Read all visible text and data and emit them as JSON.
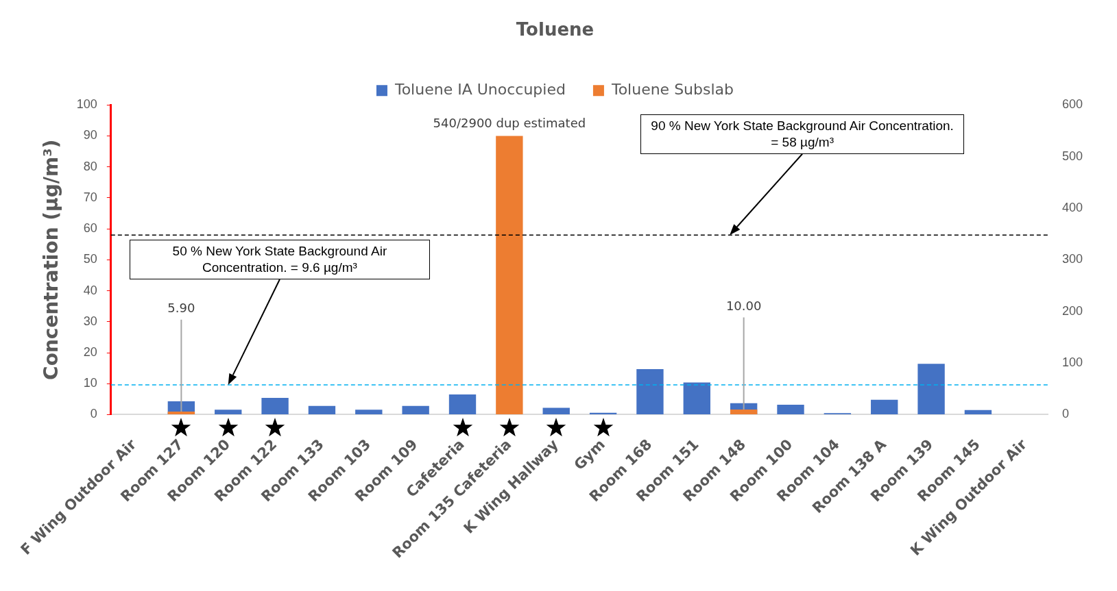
{
  "chart_data": {
    "type": "bar",
    "title": "Toluene",
    "ylabel": "Concentration (µg/m³)",
    "categories": [
      "F Wing Outdoor Air",
      "Room 127",
      "Room 120",
      "Room 122",
      "Room 133",
      "Room 103",
      "Room 109",
      "Cafeteria",
      "Room 135 Cafeteria",
      "K Wing Hallway",
      "Gym",
      "Room 168",
      "Room 151",
      "Room 148",
      "Room 100",
      "Room 104",
      "Room 138 A",
      "Room 139",
      "Room 145",
      "K Wing Outdoor Air"
    ],
    "series": [
      {
        "name": "Toluene IA Unoccupied",
        "color": "#4472c4",
        "values": [
          null,
          4.3,
          1.6,
          5.4,
          2.8,
          1.6,
          2.8,
          6.5,
          null,
          2.2,
          0.6,
          14.7,
          10.4,
          3.7,
          3.2,
          0.5,
          4.8,
          16.4,
          1.5,
          null
        ]
      },
      {
        "name": "Toluene Subslab",
        "color": "#ed7d31",
        "axis": "y2",
        "values": [
          null,
          5.9,
          null,
          null,
          null,
          null,
          null,
          null,
          540,
          null,
          null,
          null,
          null,
          10,
          null,
          null,
          null,
          null,
          null,
          null
        ],
        "value_labels": [
          null,
          "5.90",
          null,
          null,
          null,
          null,
          null,
          null,
          "540/2900 dup estimated",
          null,
          null,
          null,
          null,
          "10.00",
          null,
          null,
          null,
          null,
          null,
          null
        ]
      }
    ],
    "ylim": [
      0,
      100
    ],
    "yticks": [
      0,
      10,
      20,
      30,
      40,
      50,
      60,
      70,
      80,
      90,
      100
    ],
    "y2lim": [
      0,
      600
    ],
    "y2ticks": [
      0,
      100,
      200,
      300,
      400,
      500,
      600
    ],
    "ref_lines": [
      {
        "axis": "y",
        "value": 58,
        "color": "#000000",
        "line_style": "dashed"
      },
      {
        "axis": "y",
        "value": 9.6,
        "color": "#00b0f0",
        "line_style": "dashed"
      }
    ],
    "annotations": [
      "90 % New York State Background Air Concentration. = 58 µg/m³",
      "50 % New York State Background Air Concentration. = 9.6 µg/m³"
    ],
    "grid": false,
    "legend": "top"
  }
}
